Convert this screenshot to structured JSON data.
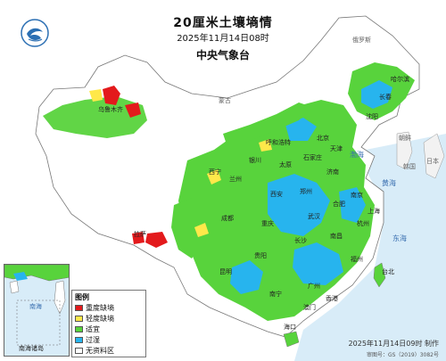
{
  "title": "20厘米土壤墒情",
  "subtitle": "2025年11月14日08时",
  "agency": "中央气象台",
  "footer": "2025年11月14日09时 制作",
  "approval": "审图号：GS（2019）3082号",
  "inset_label": "南海诸岛",
  "inset_sea": "南海",
  "legend": {
    "title": "图例",
    "items": [
      {
        "label": "重度缺墒",
        "color": "#e31a1c"
      },
      {
        "label": "轻度缺墒",
        "color": "#ffe84a"
      },
      {
        "label": "适宜",
        "color": "#58d33c"
      },
      {
        "label": "过湿",
        "color": "#27b4ee"
      },
      {
        "label": "无资料区",
        "color": "#ffffff"
      }
    ]
  },
  "colors": {
    "sea": "#d8ecf8",
    "land_no_data": "#ffffff",
    "border": "#777777"
  },
  "cities": {
    "harbin": "哈尔滨",
    "changchun": "长春",
    "shenyang": "沈阳",
    "beijing": "北京",
    "tianjin": "天津",
    "shijiazhuang": "石家庄",
    "taiyuan": "太原",
    "jinan": "济南",
    "zhengzhou": "郑州",
    "hefei": "合肥",
    "nanjing": "南京",
    "shanghai": "上海",
    "hangzhou": "杭州",
    "wuhan": "武汉",
    "nanchang": "南昌",
    "changsha": "长沙",
    "fuzhou": "福州",
    "taibei": "台北",
    "guangzhou": "广州",
    "xianggang": "香港",
    "aomen": "澳门",
    "nanning": "南宁",
    "haikou": "海口",
    "kunming": "昆明",
    "guiyang": "贵阳",
    "chongqing": "重庆",
    "chengdu": "成都",
    "xian": "西安",
    "lanzhou": "兰州",
    "xining": "西宁",
    "yinchuan": "银川",
    "huhehaote": "呼和浩特",
    "wulumuqi": "乌鲁木齐",
    "lasa": "拉萨"
  },
  "seas": {
    "bohai": "渤海",
    "huanghai": "黄海",
    "donghai": "东海"
  },
  "foreign": {
    "russia": "俄罗斯",
    "mongolia": "蒙古",
    "korea": "朝鲜",
    "hanguo": "韩国",
    "japan": "日本"
  }
}
